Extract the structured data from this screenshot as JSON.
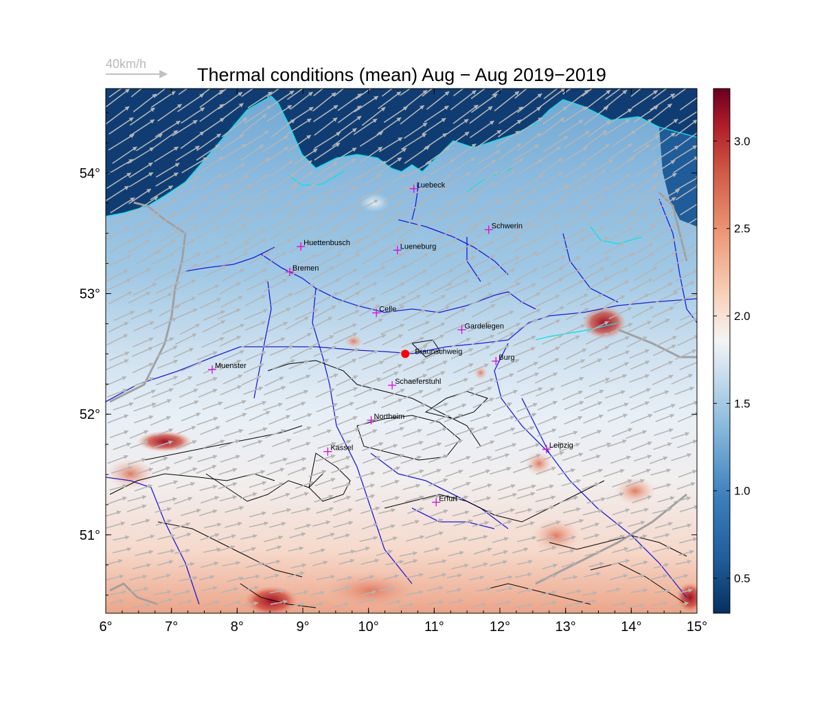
{
  "title": "Thermal conditions (mean) Aug − Aug  2019−2019",
  "wind_scale": {
    "label": "40km/h"
  },
  "map": {
    "lon_range": [
      6,
      15
    ],
    "lat_range": [
      50.35,
      54.7
    ],
    "x_ticks": [
      {
        "value": 6,
        "label": "6°"
      },
      {
        "value": 7,
        "label": "7°"
      },
      {
        "value": 8,
        "label": "8°"
      },
      {
        "value": 9,
        "label": "9°"
      },
      {
        "value": 10,
        "label": "10°"
      },
      {
        "value": 11,
        "label": "11°"
      },
      {
        "value": 12,
        "label": "12°"
      },
      {
        "value": 13,
        "label": "13°"
      },
      {
        "value": 14,
        "label": "14°"
      },
      {
        "value": 15,
        "label": "15°"
      }
    ],
    "y_ticks": [
      {
        "value": 51,
        "label": "51°"
      },
      {
        "value": 52,
        "label": "52°"
      },
      {
        "value": 53,
        "label": "53°"
      },
      {
        "value": 54,
        "label": "54°"
      }
    ],
    "cities": [
      {
        "name": "Luebeck",
        "lon": 10.69,
        "lat": 53.87
      },
      {
        "name": "Schwerin",
        "lon": 11.83,
        "lat": 53.53
      },
      {
        "name": "Huettenbusch",
        "lon": 8.97,
        "lat": 53.39
      },
      {
        "name": "Lueneburg",
        "lon": 10.44,
        "lat": 53.36
      },
      {
        "name": "Bremen",
        "lon": 8.8,
        "lat": 53.18
      },
      {
        "name": "Celle",
        "lon": 10.12,
        "lat": 52.84
      },
      {
        "name": "Gardelegen",
        "lon": 11.42,
        "lat": 52.7
      },
      {
        "name": "Muenster",
        "lon": 7.62,
        "lat": 52.37
      },
      {
        "name": "Burg",
        "lon": 11.94,
        "lat": 52.44
      },
      {
        "name": "Schaeferstuhl",
        "lon": 10.36,
        "lat": 52.24
      },
      {
        "name": "Northeim",
        "lon": 10.04,
        "lat": 51.95
      },
      {
        "name": "Kassel",
        "lon": 9.38,
        "lat": 51.69
      },
      {
        "name": "Leipzig",
        "lon": 12.71,
        "lat": 51.71
      },
      {
        "name": "Erfurt",
        "lon": 11.03,
        "lat": 51.27
      }
    ],
    "highlight_city": {
      "name": "Braunschweig",
      "lon": 10.56,
      "lat": 52.5,
      "color": "#ff0000"
    },
    "city_marker_color": "#e000e0"
  },
  "colorbar": {
    "range": [
      0.3,
      3.3
    ],
    "ticks": [
      {
        "value": 0.5,
        "label": "0.5"
      },
      {
        "value": 1.0,
        "label": "1.0"
      },
      {
        "value": 1.5,
        "label": "1.5"
      },
      {
        "value": 2.0,
        "label": "2.0"
      },
      {
        "value": 2.5,
        "label": "2.5"
      },
      {
        "value": 3.0,
        "label": "3.0"
      }
    ],
    "colormap": "RdBu_r"
  },
  "colors": {
    "coastline": "#00e5ee",
    "rivers": "#1a1adc",
    "contours": "#000000",
    "borders": "#a0a0a0",
    "wind_arrows": "#b5b5b5"
  }
}
